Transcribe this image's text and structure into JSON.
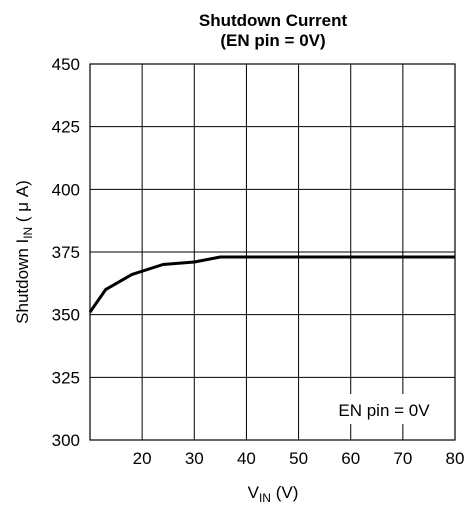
{
  "chart_data": {
    "type": "line",
    "title": "Shutdown Current",
    "subtitle": "(EN pin = 0V)",
    "xlabel_main": "V",
    "xlabel_sub": "IN",
    "xlabel_unit": " (V)",
    "ylabel_main": "Shutdown I",
    "ylabel_sub": "IN",
    "ylabel_unit": " ( μ A)",
    "xlim": [
      10,
      80
    ],
    "ylim": [
      300,
      450
    ],
    "xticks": [
      20,
      30,
      40,
      50,
      60,
      70,
      80
    ],
    "xtick_labels": [
      "20",
      "30",
      "40",
      "50",
      "60",
      "70",
      "80"
    ],
    "yticks": [
      300,
      325,
      350,
      375,
      400,
      425,
      450
    ],
    "ytick_labels": [
      "300",
      "325",
      "350",
      "375",
      "400",
      "425",
      "450"
    ],
    "grid": true,
    "annotation": "EN pin = 0V",
    "series": [
      {
        "x": [
          10,
          13,
          18,
          24,
          30,
          35,
          40,
          50,
          60,
          70,
          80
        ],
        "y": [
          351,
          360,
          366,
          370,
          371,
          373,
          373,
          373,
          373,
          373,
          373
        ]
      }
    ],
    "line_color": "#000000"
  }
}
